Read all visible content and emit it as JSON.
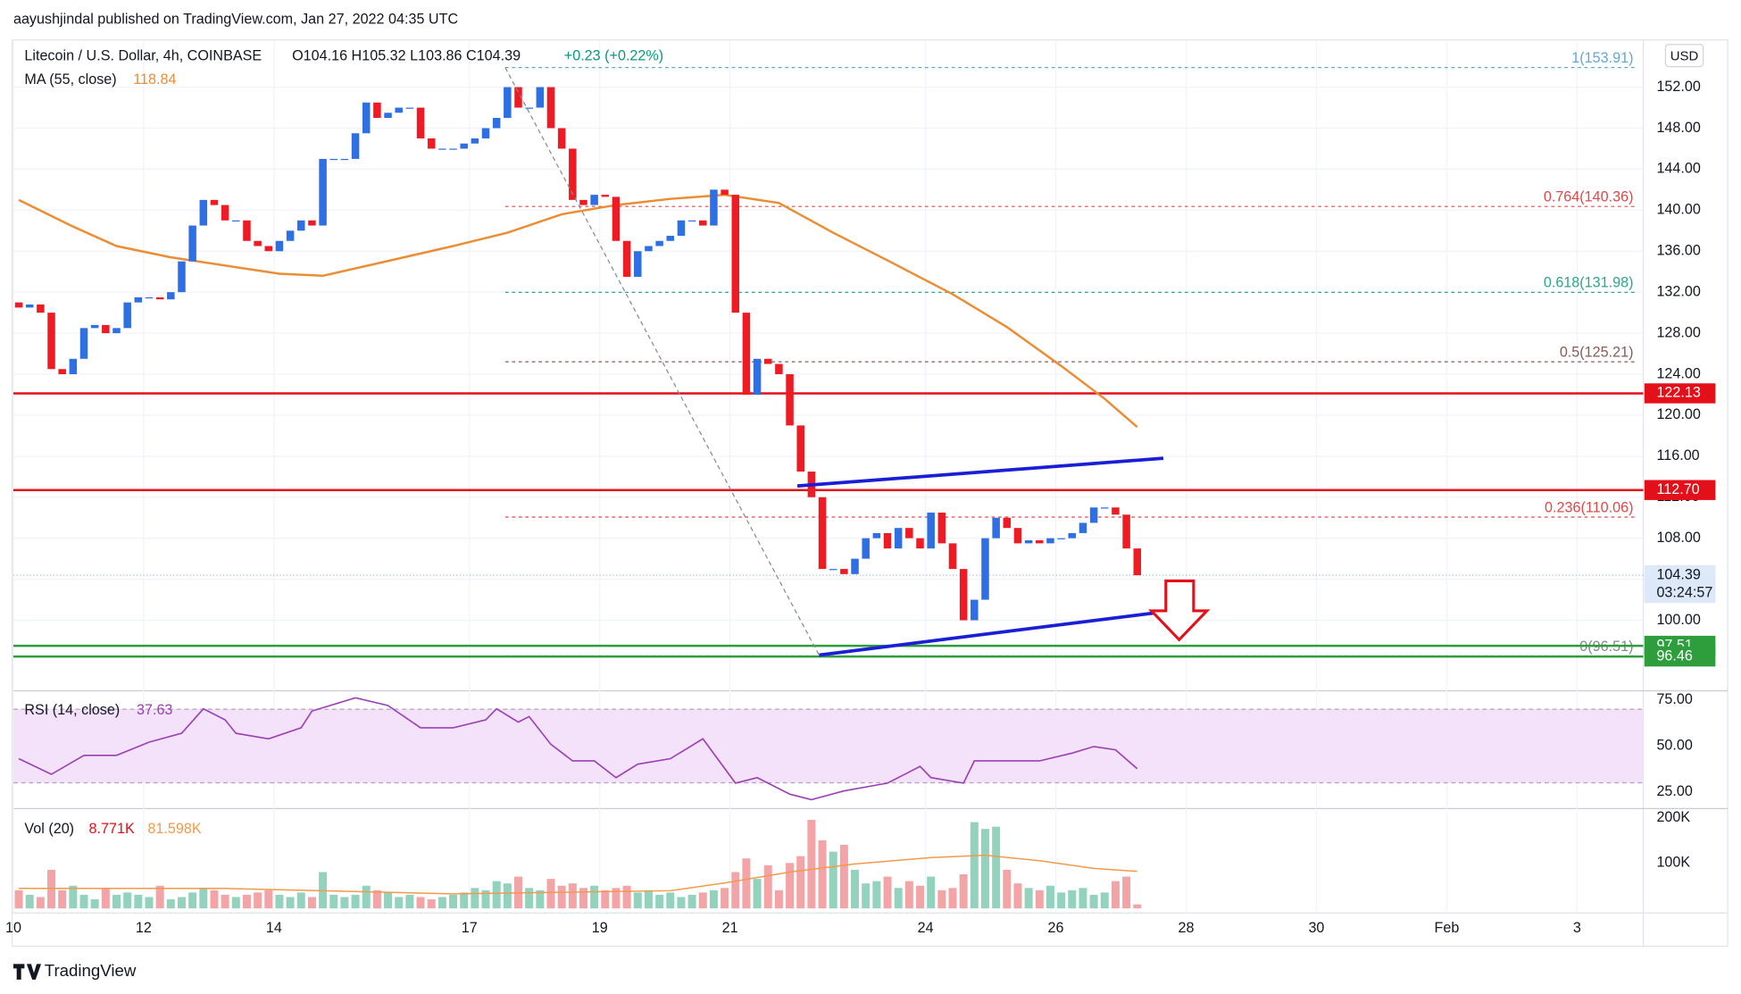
{
  "header": {
    "publisher": "aayushjindal published on TradingView.com, Jan 27, 2022 04:35 UTC",
    "brand": "TradingView"
  },
  "chart_data": {
    "type": "candlestick",
    "title": "Litecoin / U.S. Dollar, 4h, COINBASE",
    "ohlc_legend": "O104.16 H105.32 L103.86 C104.39",
    "change": "+0.23 (+0.22%)",
    "currency": "USD",
    "up_color": "#2f6fe4",
    "down_color": "#ee1b24",
    "candles": {
      "open": 131,
      "close": [
        130.5,
        130.8,
        130,
        124.5,
        124,
        125.5,
        128.5,
        128.8,
        128,
        128.5,
        131,
        131.5,
        131.5,
        131.3,
        132,
        135,
        138.5,
        141,
        140.5,
        139,
        139,
        137,
        136.5,
        136,
        137,
        138,
        139,
        138.5,
        145,
        145,
        145,
        147.5,
        150.5,
        149,
        149.5,
        150,
        150,
        147,
        146,
        146,
        146,
        146.5,
        147,
        148,
        149,
        152,
        150,
        150,
        152,
        148,
        146,
        141,
        140.5,
        141.5,
        141.3,
        137,
        133.5,
        136,
        136.5,
        137,
        137.5,
        139,
        139,
        138.5,
        142,
        141.5,
        130,
        122,
        125.5,
        125,
        124,
        119,
        114.5,
        112,
        105,
        105,
        104.5,
        106,
        108,
        108.5,
        107,
        109,
        108,
        107,
        110.5,
        107.5,
        105,
        100,
        102,
        108,
        110,
        109,
        107.5,
        107.8,
        107.5,
        108,
        108,
        108.5,
        109.5,
        111,
        111,
        110.3,
        107,
        104.39
      ]
    },
    "xlim": [
      0,
      150.1
    ],
    "xticks": [
      {
        "value": 0,
        "label": "10"
      },
      {
        "value": 12,
        "label": "12"
      },
      {
        "value": 24,
        "label": "14"
      },
      {
        "value": 42,
        "label": "17"
      },
      {
        "value": 54,
        "label": "19"
      },
      {
        "value": 66,
        "label": "21"
      },
      {
        "value": 84,
        "label": "24"
      },
      {
        "value": 96,
        "label": "26"
      },
      {
        "value": 108,
        "label": "28"
      },
      {
        "value": 120,
        "label": "30"
      },
      {
        "value": 132,
        "label": "Feb"
      },
      {
        "value": 144,
        "label": "3"
      }
    ],
    "ylim": [
      95.5,
      156.6
    ],
    "yticks": [
      {
        "value": 100,
        "label": "100.00"
      },
      {
        "value": 104,
        "label": "104.00"
      },
      {
        "value": 108,
        "label": "108.00"
      },
      {
        "value": 112,
        "label": "112.00"
      },
      {
        "value": 116,
        "label": "116.00"
      },
      {
        "value": 120,
        "label": "120.00"
      },
      {
        "value": 124,
        "label": "124.00"
      },
      {
        "value": 128,
        "label": "128.00"
      },
      {
        "value": 132,
        "label": "132.00"
      },
      {
        "value": 136,
        "label": "136.00"
      },
      {
        "value": 140,
        "label": "140.00"
      },
      {
        "value": 144,
        "label": "144.00"
      },
      {
        "value": 148,
        "label": "148.00"
      },
      {
        "value": 152,
        "label": "152.00"
      }
    ],
    "grid": true,
    "ma": {
      "name": "MA (55, close)",
      "last": "118.84",
      "color": "#eb8d34",
      "x": [
        0,
        5,
        9,
        14,
        19,
        24,
        28,
        33,
        40,
        45,
        50,
        55,
        60,
        65,
        70,
        75,
        80,
        86,
        91,
        96,
        100,
        103
      ],
      "values": [
        141,
        138.4,
        136.5,
        135.4,
        134.6,
        133.8,
        133.6,
        134.8,
        136.5,
        137.8,
        139.6,
        140.5,
        141.1,
        141.5,
        140.7,
        137.8,
        135.1,
        131.8,
        128.6,
        124.8,
        121.6,
        118.84
      ]
    },
    "fib": {
      "x": [
        45.3,
        149.6
      ],
      "levels": [
        {
          "value": 153.91,
          "label": "1(153.91)",
          "color": "#5fa8d8"
        },
        {
          "value": 140.36,
          "label": "0.764(140.36)",
          "color": "#e04848"
        },
        {
          "value": 131.98,
          "label": "0.618(131.98)",
          "color": "#2aa88a"
        },
        {
          "value": 125.21,
          "label": "0.5(125.21)",
          "color": "#8a5a5a"
        },
        {
          "value": 110.06,
          "label": "0.236(110.06)",
          "color": "#e04848"
        },
        {
          "value": 96.51,
          "label": "0(96.51)",
          "color": "#888888"
        }
      ]
    },
    "hlines": [
      {
        "value": 122.13,
        "color": "#e3101a"
      },
      {
        "value": 112.7,
        "label": "112.70",
        "color": "#e3101a"
      },
      {
        "value": 97.51,
        "color": "#2e9e3c"
      },
      {
        "value": 96.46,
        "color": "#2e9e3c"
      }
    ],
    "trendlines": [
      {
        "color": "#1a1fd6",
        "x": [
          72.2,
          105.9
        ],
        "y": [
          113.1,
          115.8
        ]
      },
      {
        "color": "#1a1fd6",
        "x": [
          74.2,
          108
        ],
        "y": [
          96.6,
          101.1
        ]
      },
      {
        "color": "#8a8a8a",
        "dashed": true,
        "x": [
          45.3,
          74.2
        ],
        "y": [
          153.9,
          96.6
        ]
      }
    ],
    "last_price": {
      "value": 104.39,
      "countdown": "03:24:57"
    },
    "rsi": {
      "name": "RSI (14, close)",
      "last": "37.63",
      "color": "#9b3fb5",
      "ylim": [
        16,
        80
      ],
      "band": [
        30,
        70
      ],
      "yticks": [
        {
          "value": 75,
          "label": "75.00"
        },
        {
          "value": 50,
          "label": "50.00"
        },
        {
          "value": 25,
          "label": "25.00"
        }
      ],
      "x": [
        0,
        3,
        6,
        9,
        12,
        15,
        17,
        19,
        20,
        23,
        26,
        27,
        31,
        34,
        37,
        40,
        43,
        44,
        46,
        47,
        49,
        51,
        53,
        55,
        57,
        60,
        63,
        66,
        68,
        71,
        73,
        76,
        80,
        83,
        84,
        87,
        88,
        91,
        94,
        97,
        99,
        101,
        103
      ],
      "values": [
        43.1,
        34.6,
        44.9,
        44.9,
        52.1,
        56.9,
        70.2,
        64.2,
        56.9,
        53.9,
        59.9,
        69,
        76.2,
        72,
        59.9,
        59.9,
        64.2,
        70.2,
        63,
        66,
        50.9,
        41.9,
        41.9,
        32.8,
        40.1,
        43.1,
        53.9,
        29.8,
        32.8,
        23.8,
        20.8,
        25.6,
        29.8,
        38.9,
        32.8,
        29.8,
        41.9,
        41.9,
        41.9,
        46.1,
        49.7,
        47.9,
        37.63
      ]
    },
    "volume": {
      "name": "Vol (20)",
      "last": "8.771K",
      "ma_last": "81.598K",
      "ma_color": "#f29a4a",
      "up_color": "#93d3bd",
      "down_color": "#f3a4a6",
      "ylim": [
        -10,
        220
      ],
      "yticks": [
        {
          "value": 100,
          "label": "100K"
        },
        {
          "value": 200,
          "label": "200K"
        }
      ],
      "values": [
        40,
        30,
        25,
        85,
        40,
        50,
        30,
        20,
        45,
        30,
        35,
        30,
        25,
        50,
        20,
        25,
        35,
        45,
        40,
        30,
        25,
        30,
        35,
        40,
        30,
        25,
        35,
        25,
        80,
        30,
        25,
        30,
        50,
        40,
        35,
        25,
        30,
        25,
        20,
        25,
        30,
        35,
        45,
        40,
        60,
        55,
        70,
        45,
        40,
        65,
        50,
        55,
        45,
        50,
        40,
        45,
        50,
        35,
        40,
        30,
        35,
        25,
        30,
        35,
        40,
        45,
        80,
        110,
        65,
        95,
        40,
        100,
        115,
        195,
        150,
        125,
        140,
        85,
        55,
        60,
        70,
        45,
        60,
        50,
        70,
        40,
        45,
        75,
        190,
        175,
        180,
        85,
        55,
        45,
        40,
        50,
        35,
        40,
        45,
        30,
        35,
        60,
        70,
        8.771
      ],
      "ma_x": [
        0,
        19,
        40,
        60,
        65,
        71,
        77,
        84,
        89,
        94,
        99,
        103
      ],
      "ma_values": [
        44,
        44,
        32,
        39,
        56,
        80,
        98,
        112,
        117,
        105,
        88,
        81.598
      ]
    }
  }
}
